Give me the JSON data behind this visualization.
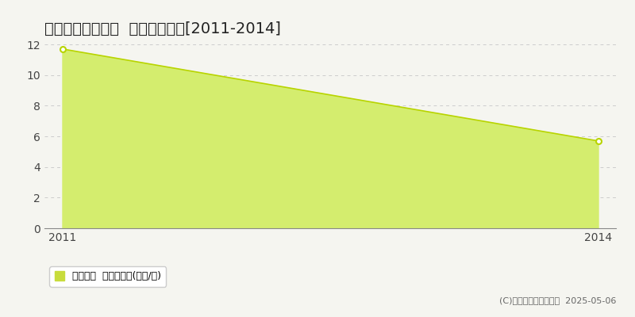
{
  "title": "甲賀市信楽町杉山  住宅価格推移[2011-2014]",
  "years": [
    2011,
    2014
  ],
  "values": [
    11.7,
    5.7
  ],
  "fill_color": "#d4ed6e",
  "line_color": "#b8d400",
  "marker_color": "#b8d400",
  "ylim": [
    0,
    12
  ],
  "yticks": [
    0,
    2,
    4,
    6,
    8,
    10,
    12
  ],
  "xticks": [
    2011,
    2014
  ],
  "grid_color": "#cccccc",
  "bg_color": "#f5f5f0",
  "plot_bg_color": "#f5f5f0",
  "legend_label": "住宅価格  平均坪単価(万円/坪)",
  "copyright_text": "(C)土地価格ドットコム  2025-05-06",
  "legend_box_color": "#c8dc3c",
  "axis_color": "#333333",
  "title_fontsize": 14,
  "tick_fontsize": 10,
  "legend_fontsize": 9,
  "copyright_fontsize": 8
}
